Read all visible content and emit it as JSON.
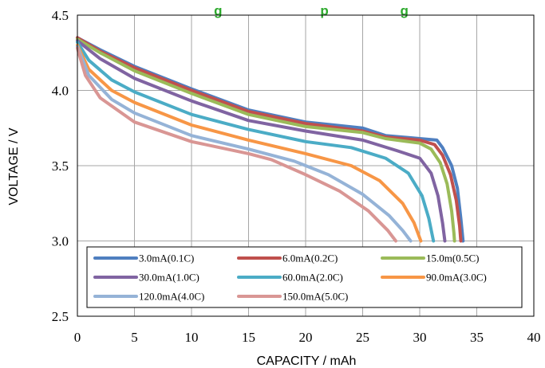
{
  "chart_data": {
    "type": "line",
    "title": "g                          p                   g",
    "xlabel": "CAPACITY / mAh",
    "ylabel": "VOLTAGE / V",
    "xlim": [
      0,
      40
    ],
    "ylim": [
      2.5,
      4.5
    ],
    "x_ticks": [
      "0",
      "5",
      "10",
      "15",
      "20",
      "25",
      "30",
      "35",
      "40"
    ],
    "y_ticks": [
      "2.5",
      "3.0",
      "3.5",
      "4.0",
      "4.5"
    ],
    "grid": true,
    "legend_position": "bottom-left-inside",
    "series": [
      {
        "name": "3.0mA(0.1C)",
        "color": "#4f7fc0",
        "points": [
          [
            0,
            4.35
          ],
          [
            2,
            4.27
          ],
          [
            5,
            4.16
          ],
          [
            10,
            4.01
          ],
          [
            15,
            3.87
          ],
          [
            20,
            3.79
          ],
          [
            25,
            3.75
          ],
          [
            27,
            3.7
          ],
          [
            30,
            3.68
          ],
          [
            31.5,
            3.67
          ],
          [
            32,
            3.62
          ],
          [
            32.8,
            3.5
          ],
          [
            33.3,
            3.35
          ],
          [
            33.6,
            3.15
          ],
          [
            33.8,
            3.0
          ]
        ]
      },
      {
        "name": "6.0mA(0.2C)",
        "color": "#c0504d",
        "points": [
          [
            0,
            4.35
          ],
          [
            2,
            4.26
          ],
          [
            5,
            4.15
          ],
          [
            10,
            4.0
          ],
          [
            15,
            3.86
          ],
          [
            20,
            3.78
          ],
          [
            25,
            3.73
          ],
          [
            27,
            3.69
          ],
          [
            30,
            3.67
          ],
          [
            31.3,
            3.64
          ],
          [
            32,
            3.57
          ],
          [
            32.7,
            3.44
          ],
          [
            33.2,
            3.27
          ],
          [
            33.5,
            3.1
          ],
          [
            33.6,
            3.0
          ]
        ]
      },
      {
        "name": "15.0m(0.5C)",
        "color": "#9bbb59",
        "points": [
          [
            0,
            4.34
          ],
          [
            2,
            4.25
          ],
          [
            5,
            4.13
          ],
          [
            10,
            3.98
          ],
          [
            15,
            3.84
          ],
          [
            20,
            3.76
          ],
          [
            25,
            3.72
          ],
          [
            27,
            3.68
          ],
          [
            30,
            3.65
          ],
          [
            31,
            3.61
          ],
          [
            31.8,
            3.52
          ],
          [
            32.4,
            3.38
          ],
          [
            32.8,
            3.2
          ],
          [
            33,
            3.05
          ],
          [
            33.05,
            3.0
          ]
        ]
      },
      {
        "name": "30.0mA(1.0C)",
        "color": "#8064a2",
        "points": [
          [
            0,
            4.33
          ],
          [
            2,
            4.21
          ],
          [
            5,
            4.08
          ],
          [
            10,
            3.93
          ],
          [
            15,
            3.8
          ],
          [
            20,
            3.73
          ],
          [
            25,
            3.67
          ],
          [
            28,
            3.6
          ],
          [
            30,
            3.55
          ],
          [
            31,
            3.45
          ],
          [
            31.6,
            3.3
          ],
          [
            32,
            3.12
          ],
          [
            32.2,
            3.0
          ]
        ]
      },
      {
        "name": "60.0mA(2.0C)",
        "color": "#4bacc6",
        "points": [
          [
            0,
            4.32
          ],
          [
            1,
            4.2
          ],
          [
            3,
            4.07
          ],
          [
            5,
            3.99
          ],
          [
            10,
            3.84
          ],
          [
            15,
            3.74
          ],
          [
            20,
            3.66
          ],
          [
            24,
            3.62
          ],
          [
            27,
            3.55
          ],
          [
            29,
            3.45
          ],
          [
            30.2,
            3.3
          ],
          [
            30.8,
            3.15
          ],
          [
            31.2,
            3.0
          ]
        ]
      },
      {
        "name": "90.0mA(3.0C)",
        "color": "#f79646",
        "points": [
          [
            0,
            4.3
          ],
          [
            1,
            4.14
          ],
          [
            3,
            4.0
          ],
          [
            5,
            3.92
          ],
          [
            10,
            3.77
          ],
          [
            15,
            3.67
          ],
          [
            20,
            3.58
          ],
          [
            24,
            3.5
          ],
          [
            26.5,
            3.4
          ],
          [
            28.5,
            3.25
          ],
          [
            29.5,
            3.12
          ],
          [
            30.1,
            3.0
          ]
        ]
      },
      {
        "name": "120.0mA(4.0C)",
        "color": "#95b3d7",
        "points": [
          [
            0,
            4.29
          ],
          [
            1,
            4.1
          ],
          [
            3,
            3.94
          ],
          [
            5,
            3.85
          ],
          [
            10,
            3.7
          ],
          [
            15,
            3.61
          ],
          [
            19,
            3.53
          ],
          [
            22,
            3.44
          ],
          [
            25,
            3.31
          ],
          [
            27.3,
            3.17
          ],
          [
            28.5,
            3.07
          ],
          [
            29.2,
            3.0
          ]
        ]
      },
      {
        "name": "150.0mA(5.0C)",
        "color": "#d99694",
        "points": [
          [
            0,
            4.28
          ],
          [
            0.7,
            4.1
          ],
          [
            2,
            3.95
          ],
          [
            5,
            3.79
          ],
          [
            10,
            3.66
          ],
          [
            15,
            3.58
          ],
          [
            17,
            3.54
          ],
          [
            20,
            3.44
          ],
          [
            23,
            3.33
          ],
          [
            25.5,
            3.2
          ],
          [
            27.2,
            3.07
          ],
          [
            27.9,
            3.0
          ]
        ]
      }
    ]
  }
}
